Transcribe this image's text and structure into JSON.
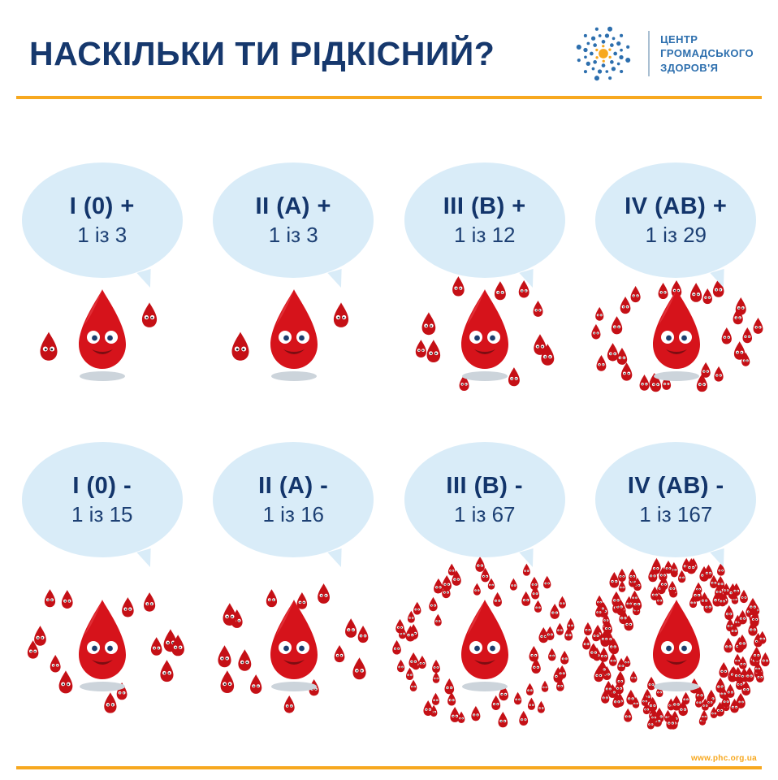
{
  "header": {
    "title": "НАСКІЛЬКИ ТИ РІДКІСНИЙ?",
    "logo_text_line1": "ЦЕНТР",
    "logo_text_line2": "ГРОМАДСЬКОГО",
    "logo_text_line3": "ЗДОРОВ'Я"
  },
  "footer": {
    "url": "www.phc.org.ua"
  },
  "colors": {
    "navy": "#16386d",
    "bubble_blue": "#d9ecf8",
    "accent_orange": "#f7a81f",
    "drop_red": "#d6131b",
    "logo_blue": "#2d6fae"
  },
  "chart_data": {
    "type": "table",
    "title": "НАСКІЛЬКИ ТИ РІДКІСНИЙ?",
    "rows": [
      {
        "label": "I (0) +",
        "ratio": "1 із 3",
        "one_in": 3
      },
      {
        "label": "II (A) +",
        "ratio": "1 із 3",
        "one_in": 3
      },
      {
        "label": "III (B) +",
        "ratio": "1 із 12",
        "one_in": 12
      },
      {
        "label": "IV (AB) +",
        "ratio": "1 із 29",
        "one_in": 29
      },
      {
        "label": "I (0) -",
        "ratio": "1 із 15",
        "one_in": 15
      },
      {
        "label": "II (A) -",
        "ratio": "1 із 16",
        "one_in": 16
      },
      {
        "label": "III (B) -",
        "ratio": "1 із 67",
        "one_in": 67
      },
      {
        "label": "IV (AB) -",
        "ratio": "1 із 167",
        "one_in": 167
      }
    ]
  }
}
